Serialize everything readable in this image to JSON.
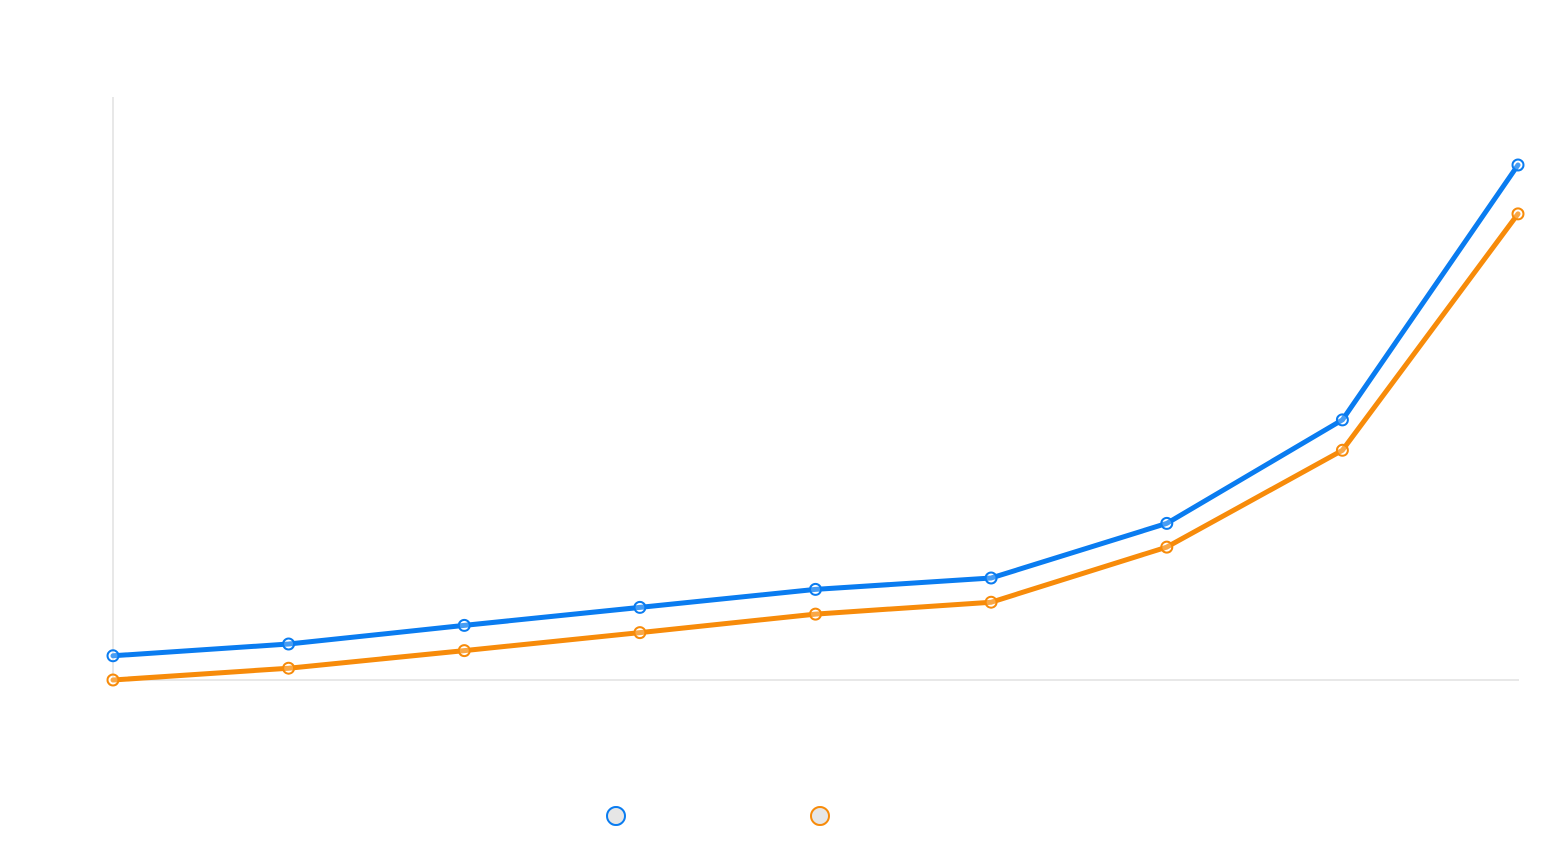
{
  "chart_data": {
    "type": "line",
    "title": "",
    "xlabel": "",
    "ylabel": "",
    "categories": [
      "",
      "",
      "",
      "",
      "",
      "",
      "",
      "",
      ""
    ],
    "ylim": [
      0,
      100
    ],
    "grid": false,
    "legend_position": "bottom",
    "series": [
      {
        "name": "",
        "color": "#0a7cf0",
        "values": [
          4.7,
          7.0,
          10.6,
          14.1,
          17.6,
          19.8,
          30.4,
          50.5,
          100.0
        ]
      },
      {
        "name": "",
        "color": "#f78b0a",
        "values": [
          0.0,
          2.3,
          5.7,
          9.2,
          12.8,
          15.1,
          25.8,
          44.6,
          90.5
        ]
      }
    ]
  }
}
